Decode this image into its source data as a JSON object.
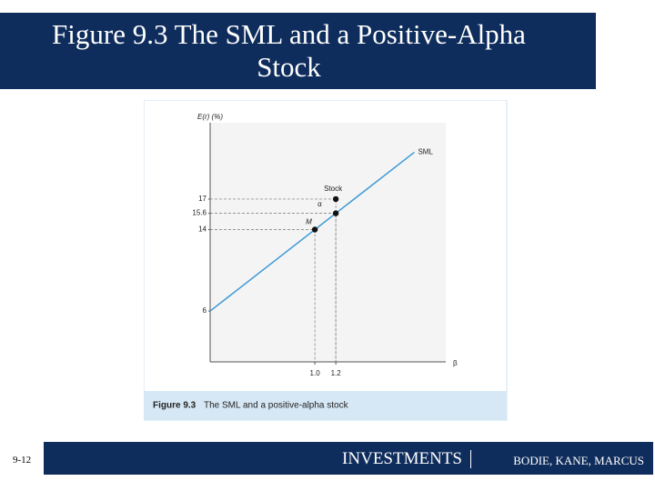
{
  "slide": {
    "title": "Figure 9.3 The SML and a Positive-Alpha Stock",
    "page_number": "9-12",
    "footer_brand": "INVESTMENTS",
    "footer_authors": "BODIE, KANE, MARCUS"
  },
  "chart_data": {
    "type": "line",
    "ylabel": "E(r) (%)",
    "xlabel": "β",
    "caption_number": "Figure 9.3",
    "caption_text": "The SML and a positive-alpha stock",
    "series": [
      {
        "name": "SML",
        "color": "#3d9ad6",
        "x": [
          0,
          1.95
        ],
        "values": [
          6,
          21.6
        ]
      }
    ],
    "points": [
      {
        "label": "M",
        "x": 1.0,
        "y": 14
      },
      {
        "label": "Stock",
        "x": 1.2,
        "y": 17
      },
      {
        "x": 1.2,
        "y": 15.6
      }
    ],
    "alpha_label": "α",
    "xlim": [
      0,
      2.25
    ],
    "ylim": [
      1,
      24.5
    ],
    "xticks": [
      {
        "value": 1,
        "label": "1.0"
      },
      1.2
    ],
    "yticks": [
      6,
      14,
      15.6,
      17
    ]
  }
}
